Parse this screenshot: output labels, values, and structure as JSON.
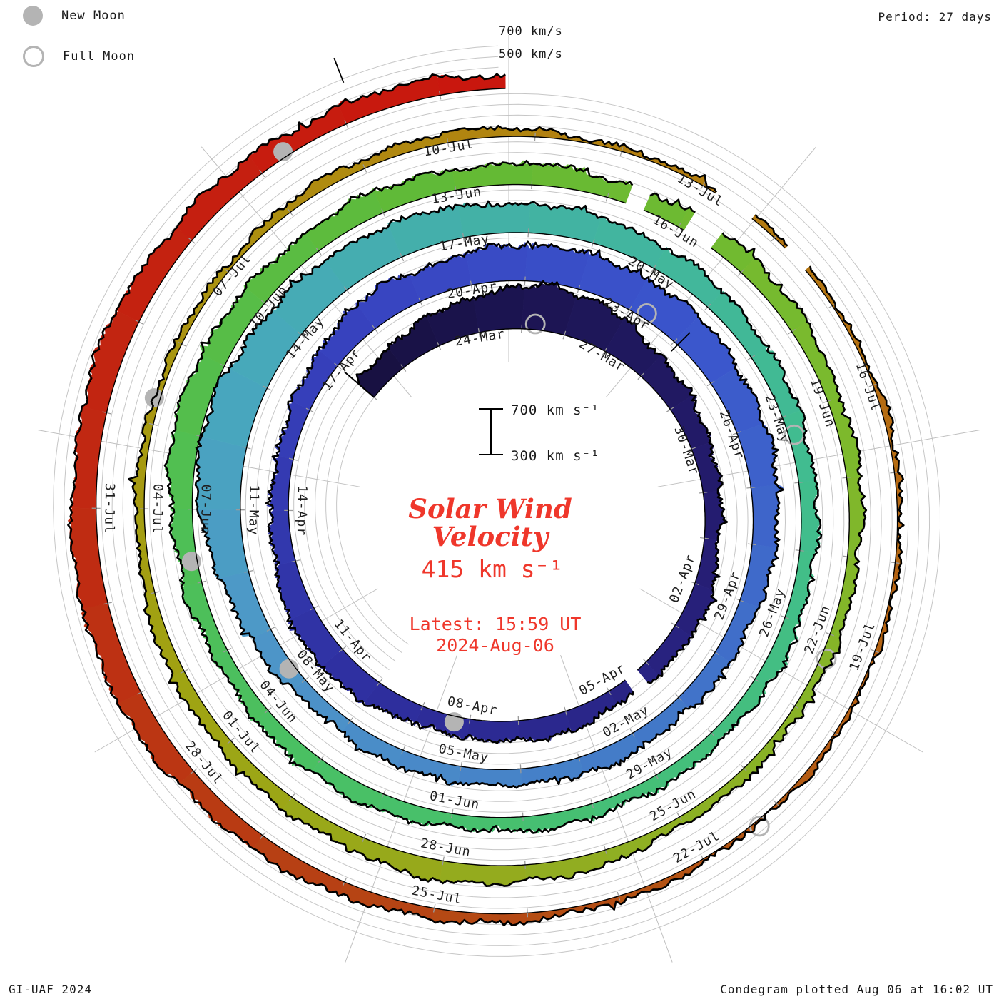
{
  "legend": {
    "new_moon_label": "New Moon",
    "full_moon_label": "Full Moon"
  },
  "header": {
    "period_label": "Period: 27 days",
    "outer_scale_top": "700 km/s",
    "outer_scale_bottom": "500 km/s"
  },
  "footer": {
    "credit": "GI-UAF 2024",
    "plotted": "Condegram plotted Aug 06 at 16:02 UT"
  },
  "center": {
    "scale_top_label": "700 km s⁻¹",
    "scale_bottom_label": "300 km s⁻¹",
    "title_line1": "Solar Wind",
    "title_line2": "Velocity",
    "current_speed": "415 km s⁻¹",
    "latest_line1": "Latest: 15:59 UT",
    "latest_line2": "2024-Aug-06"
  },
  "colors": {
    "accent_red": "#ef372b",
    "grid": "#c6c6c6",
    "spoke": "#c0c0c0",
    "tick": "#9a9a9a",
    "moon": "#b4b4b4",
    "edge": "#000000",
    "label_text": "#1f1f1f"
  },
  "chart_data": {
    "type": "area",
    "style": "spiral-condegram",
    "title": "Solar Wind Velocity",
    "period_days": 27,
    "start_date": "2024-03-21",
    "end_datetime": "2024-08-06T16:00",
    "latest_time_ut": "15:59",
    "current_speed_kms": 415,
    "velocity_baseline_kms": 300,
    "inner_scale_kms": [
      300,
      700
    ],
    "outer_scale_kms": [
      500,
      700
    ],
    "date_labels": [
      "24-Mar",
      "27-Mar",
      "30-Mar",
      "02-Apr",
      "05-Apr",
      "08-Apr",
      "11-Apr",
      "14-Apr",
      "17-Apr",
      "20-Apr",
      "23-Apr",
      "26-Apr",
      "29-Apr",
      "02-May",
      "05-May",
      "08-May",
      "11-May",
      "14-May",
      "17-May",
      "20-May",
      "23-May",
      "26-May",
      "29-May",
      "01-Jun",
      "04-Jun",
      "07-Jun",
      "10-Jun",
      "13-Jun",
      "16-Jun",
      "19-Jun",
      "22-Jun",
      "25-Jun",
      "28-Jun",
      "01-Jul",
      "04-Jul",
      "07-Jul",
      "10-Jul",
      "13-Jul",
      "16-Jul",
      "19-Jul",
      "22-Jul",
      "25-Jul",
      "28-Jul",
      "31-Jul"
    ],
    "daily_velocity": {
      "start_date": "2024-03-21",
      "step_days": 1,
      "values": [
        520,
        560,
        610,
        660,
        730,
        690,
        600,
        540,
        500,
        470,
        450,
        440,
        500,
        470,
        440,
        470,
        500,
        480,
        460,
        500,
        540,
        560,
        520,
        480,
        450,
        470,
        490,
        560,
        600,
        580,
        620,
        650,
        630,
        640,
        610,
        580,
        560,
        540,
        500,
        480,
        460,
        450,
        470,
        450,
        430,
        460,
        440,
        430,
        480,
        540,
        620,
        740,
        720,
        680,
        650,
        640,
        610,
        580,
        560,
        540,
        520,
        490,
        470,
        460,
        450,
        440,
        450,
        430,
        420,
        420,
        430,
        420,
        440,
        460,
        450,
        440,
        460,
        480,
        540,
        560,
        530,
        510,
        520,
        500,
        480,
        490,
        470,
        500,
        470,
        440,
        430,
        420,
        400,
        390,
        380,
        390,
        400,
        440,
        480,
        470,
        440,
        420,
        430,
        410,
        380,
        370,
        360,
        350,
        370,
        390,
        400,
        380,
        350,
        330,
        340,
        330,
        340,
        350,
        340,
        330,
        330,
        340,
        330,
        340,
        360,
        390,
        420,
        440,
        470,
        510,
        540,
        530,
        520,
        540,
        520,
        500,
        480,
        470,
        430
      ]
    },
    "data_gaps": [
      [
        "2024-04-04T06:00",
        "2024-04-04T14:00"
      ],
      [
        "2024-06-15T06:00",
        "2024-06-15T12:00"
      ],
      [
        "2024-06-16T02:00",
        "2024-06-16T12:00"
      ],
      [
        "2024-07-13T04:00",
        "2024-07-13T16:00"
      ],
      [
        "2024-07-14T04:00",
        "2024-07-14T12:00"
      ]
    ],
    "new_moons": [
      "2024-04-08",
      "2024-05-08",
      "2024-06-06",
      "2024-07-05",
      "2024-08-04"
    ],
    "full_moons": [
      "2024-03-25",
      "2024-04-23",
      "2024-05-23",
      "2024-06-22",
      "2024-07-21"
    ],
    "event_markers": [
      "2024-03-28T02:00",
      "2024-08-05T03:00"
    ],
    "color_stops": [
      [
        "2024-03-21",
        "#171040"
      ],
      [
        "2024-04-01",
        "#251d72"
      ],
      [
        "2024-04-10",
        "#2e2f9f"
      ],
      [
        "2024-04-18",
        "#3843c0"
      ],
      [
        "2024-04-24",
        "#3a55cc"
      ],
      [
        "2024-05-02",
        "#437ac8"
      ],
      [
        "2024-05-09",
        "#4e97c8"
      ],
      [
        "2024-05-13",
        "#47a8bc"
      ],
      [
        "2024-05-18",
        "#42b2a4"
      ],
      [
        "2024-05-24",
        "#41bd8e"
      ],
      [
        "2024-06-01",
        "#47c06c"
      ],
      [
        "2024-06-07",
        "#4fbf54"
      ],
      [
        "2024-06-13",
        "#62ba35"
      ],
      [
        "2024-06-19",
        "#7cba2d"
      ],
      [
        "2024-06-26",
        "#90ae22"
      ],
      [
        "2024-07-02",
        "#a0a312"
      ],
      [
        "2024-07-08",
        "#ae8d10"
      ],
      [
        "2024-07-13",
        "#b37c10"
      ],
      [
        "2024-07-17",
        "#b56a12"
      ],
      [
        "2024-07-22",
        "#b35413"
      ],
      [
        "2024-07-26",
        "#b64214"
      ],
      [
        "2024-07-31",
        "#c02a12"
      ],
      [
        "2024-08-06",
        "#c9170e"
      ]
    ]
  }
}
